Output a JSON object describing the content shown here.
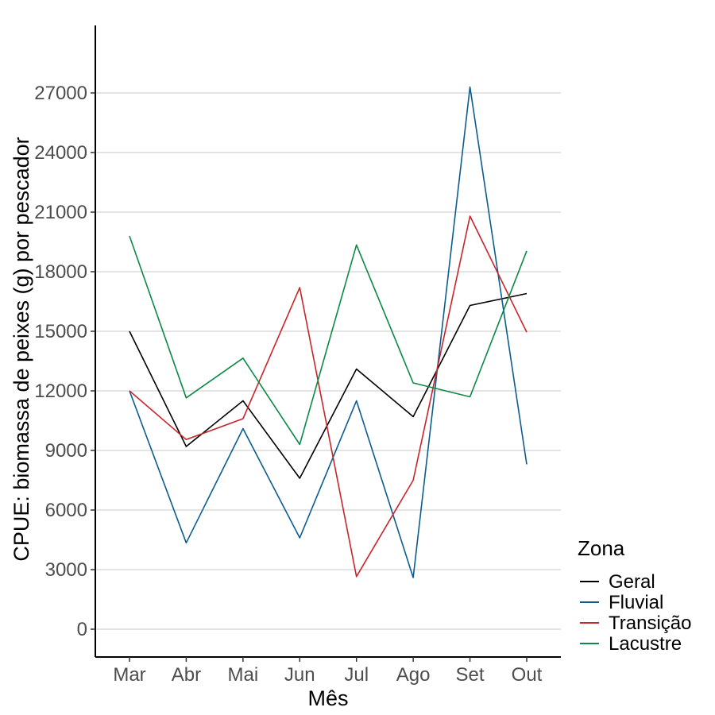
{
  "chart_data": {
    "type": "line",
    "title": "",
    "xlabel": "Mês",
    "ylabel": "CPUE: biomassa de peixes (g) por pescador",
    "categories": [
      "Mar",
      "Abr",
      "Mai",
      "Jun",
      "Jul",
      "Ago",
      "Set",
      "Out"
    ],
    "ylim": [
      -1400,
      30400
    ],
    "yticks": [
      0,
      3000,
      6000,
      9000,
      12000,
      15000,
      18000,
      21000,
      24000,
      27000
    ],
    "grid": "horizontal major lines",
    "legend": {
      "title": "Zona",
      "position": "right"
    },
    "series": [
      {
        "name": "Geral",
        "color": "#000000",
        "values": [
          15000,
          9200,
          11500,
          7600,
          13100,
          10700,
          16300,
          16900
        ]
      },
      {
        "name": "Fluvial",
        "color": "#0b5c8f",
        "values": [
          12000,
          4350,
          10100,
          4600,
          11500,
          2600,
          27300,
          8300
        ]
      },
      {
        "name": "Transição",
        "color": "#c8242b",
        "values": [
          12000,
          9550,
          10600,
          17200,
          2650,
          7500,
          20800,
          14950
        ]
      },
      {
        "name": "Lacustre",
        "color": "#0a8a45",
        "values": [
          19800,
          11650,
          13650,
          9300,
          19350,
          12400,
          11700,
          19050
        ]
      }
    ]
  }
}
